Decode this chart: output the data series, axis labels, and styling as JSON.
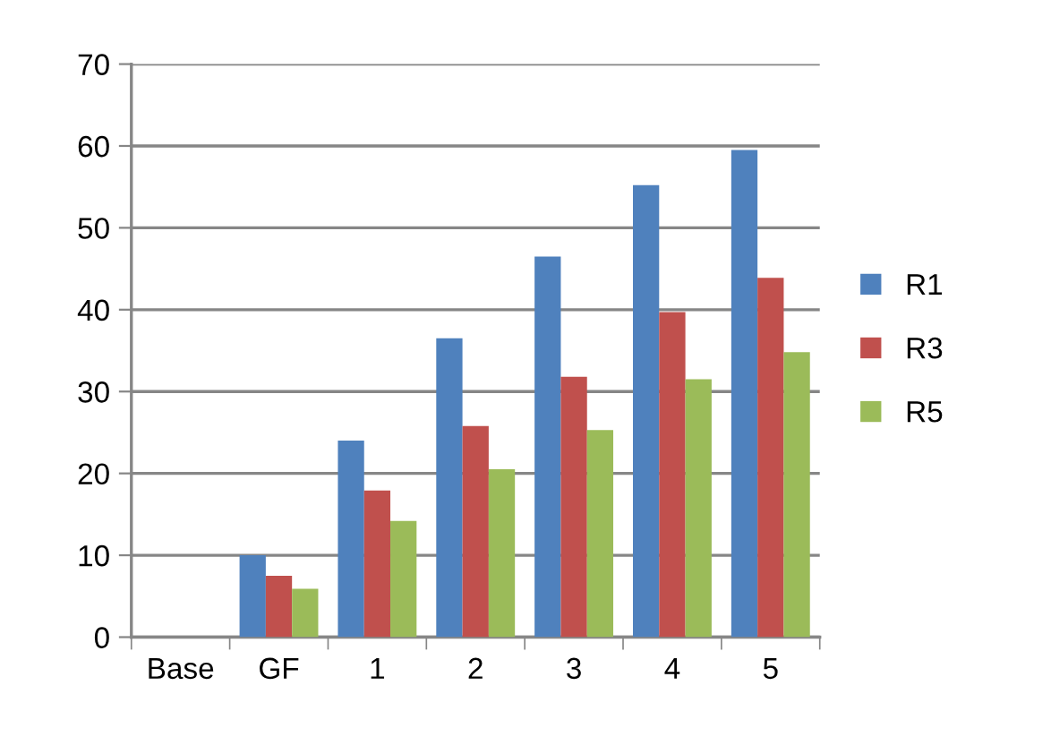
{
  "chart_data": {
    "type": "bar",
    "categories": [
      "Base",
      "GF",
      "1",
      "2",
      "3",
      "4",
      "5"
    ],
    "series": [
      {
        "name": "R1",
        "color": "#4f81bd",
        "values": [
          null,
          10.0,
          24.0,
          36.5,
          46.5,
          55.2,
          59.5
        ]
      },
      {
        "name": "R3",
        "color": "#c0504d",
        "values": [
          null,
          7.5,
          17.9,
          25.8,
          31.8,
          39.7,
          43.9
        ]
      },
      {
        "name": "R5",
        "color": "#9bbb59",
        "values": [
          null,
          5.9,
          14.2,
          20.5,
          25.3,
          31.5,
          34.8
        ]
      }
    ],
    "ylim": [
      0,
      70
    ],
    "yticks": [
      0,
      10,
      20,
      30,
      40,
      50,
      60,
      70
    ],
    "grid": "y",
    "legend": "right"
  }
}
